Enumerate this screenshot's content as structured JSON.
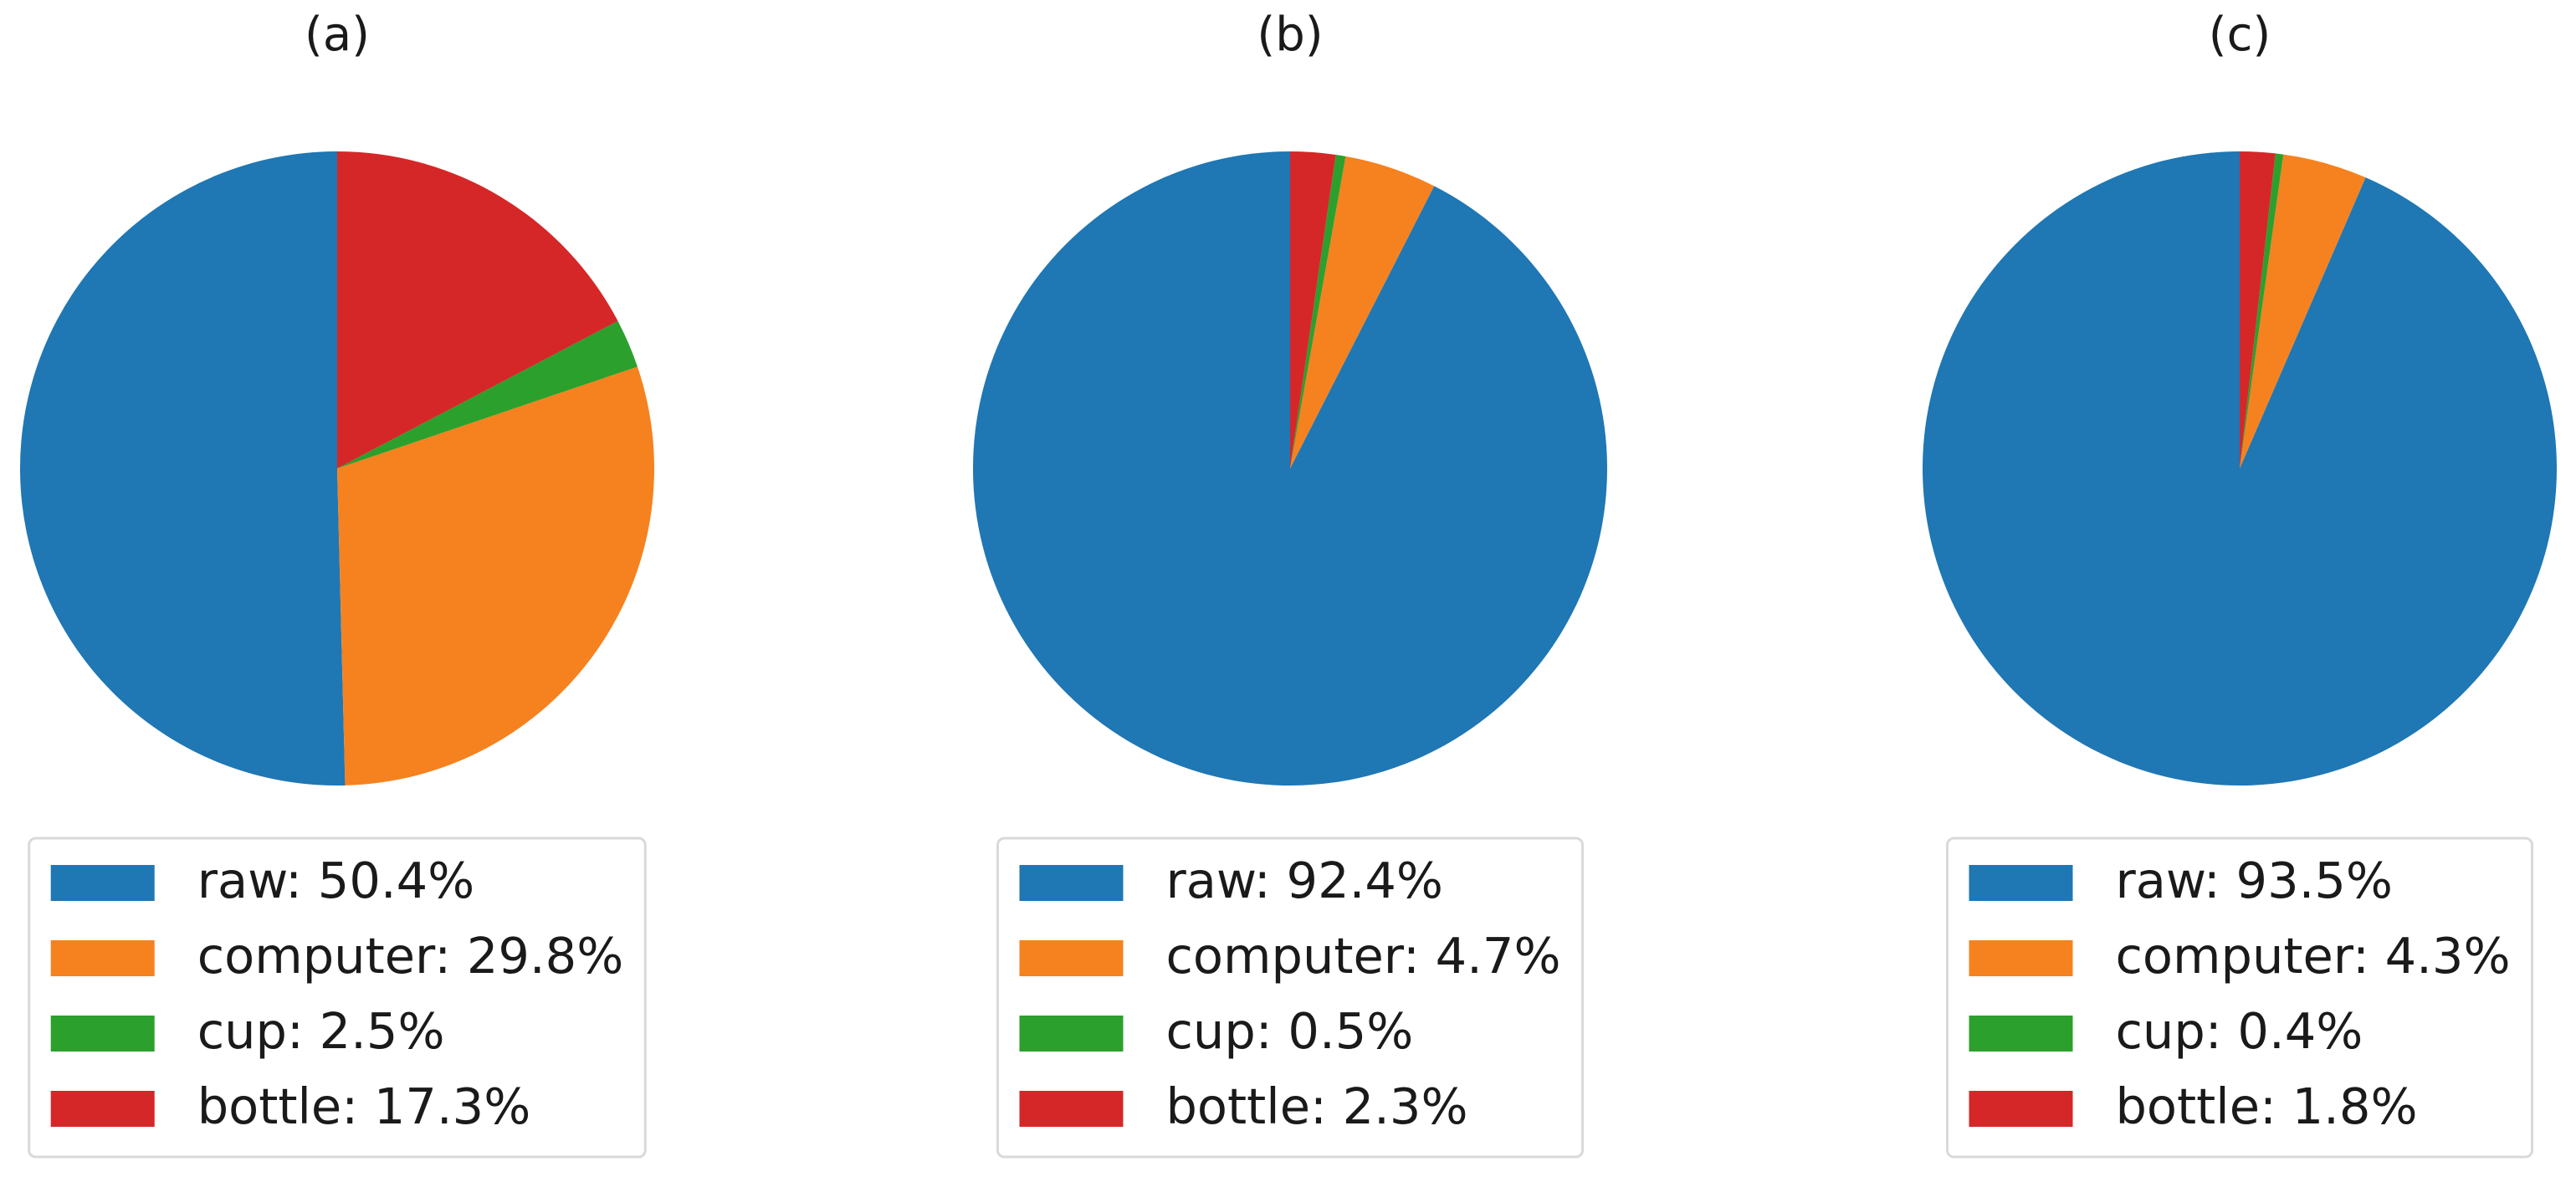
{
  "chart_data": [
    {
      "type": "pie",
      "title": "(a)",
      "labels": [
        "raw: 50.4%",
        "computer: 29.8%",
        "cup: 2.5%",
        "bottle: 17.3%"
      ],
      "values": [
        50.4,
        29.8,
        2.5,
        17.3
      ],
      "colors": [
        "#1f77b4",
        "#f5821f",
        "#2ca02c",
        "#d62728"
      ],
      "legend": "lower center"
    },
    {
      "type": "pie",
      "title": "(b)",
      "labels": [
        "raw: 92.4%",
        "computer: 4.7%",
        "cup: 0.5%",
        "bottle: 2.3%"
      ],
      "values": [
        92.4,
        4.7,
        0.5,
        2.3
      ],
      "colors": [
        "#1f77b4",
        "#f5821f",
        "#2ca02c",
        "#d62728"
      ],
      "legend": "lower center"
    },
    {
      "type": "pie",
      "title": "(c)",
      "labels": [
        "raw: 93.5%",
        "computer: 4.3%",
        "cup: 0.4%",
        "bottle: 1.8%"
      ],
      "values": [
        93.5,
        4.3,
        0.4,
        1.8
      ],
      "colors": [
        "#1f77b4",
        "#f5821f",
        "#2ca02c",
        "#d62728"
      ],
      "legend": "lower center"
    }
  ]
}
